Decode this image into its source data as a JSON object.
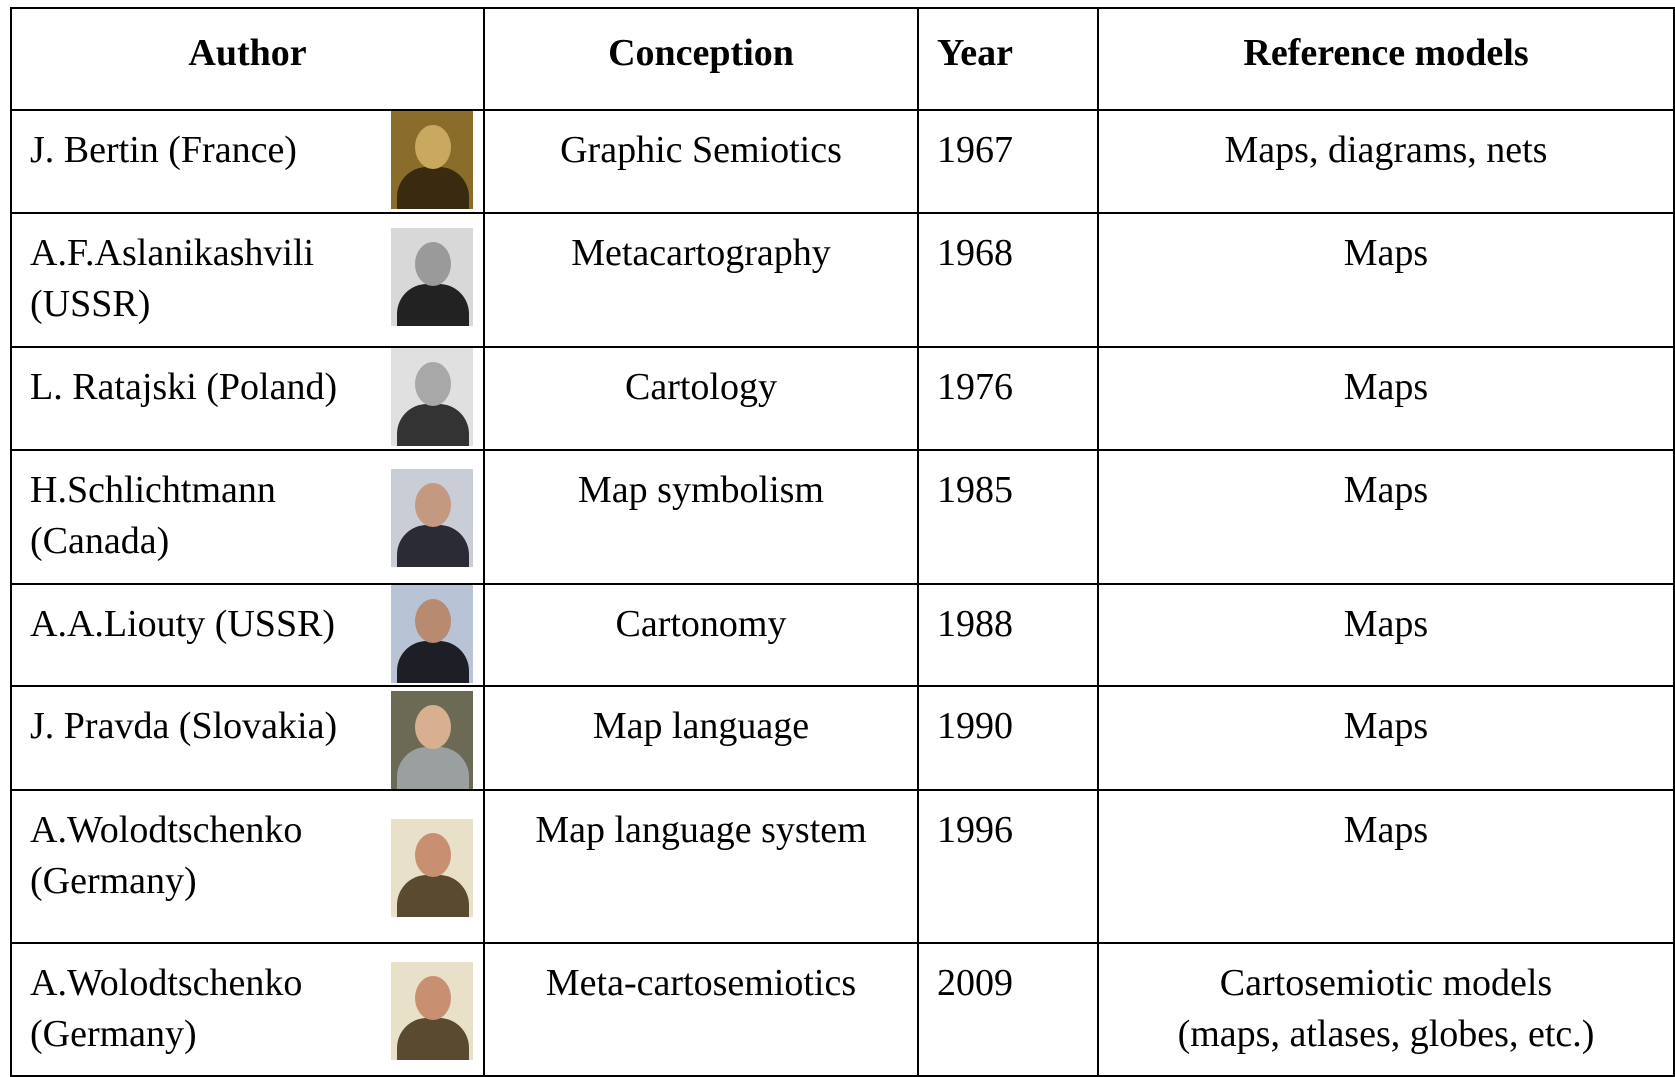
{
  "table": {
    "header": [
      "Author",
      "Conception",
      "Year",
      "Reference models"
    ],
    "rows": [
      {
        "author": [
          "J. Bertin (France)"
        ],
        "conception": "Graphic Semiotics",
        "year": 1967,
        "reference": [
          "Maps, diagrams, nets"
        ]
      },
      {
        "author": [
          "A.F.Aslanikashvili",
          "(USSR)"
        ],
        "conception": "Metacartography",
        "year": 1968,
        "reference": [
          "Maps"
        ]
      },
      {
        "author": [
          "L. Ratajski (Poland)"
        ],
        "conception": "Cartology",
        "year": 1976,
        "reference": [
          "Maps"
        ]
      },
      {
        "author": [
          "H.Schlichtmann",
          "(Canada)"
        ],
        "conception": "Map symbolism",
        "year": 1985,
        "reference": [
          "Maps"
        ]
      },
      {
        "author": [
          "A.A.Liouty (USSR)"
        ],
        "conception": "Cartonomy",
        "year": 1988,
        "reference": [
          "Maps"
        ]
      },
      {
        "author": [
          "J. Pravda (Slovakia)"
        ],
        "conception": "Map language",
        "year": 1990,
        "reference": [
          "Maps"
        ]
      },
      {
        "author": [
          "A.Wolodtschenko",
          "(Germany)"
        ],
        "conception": "Map language system",
        "year": 1996,
        "reference": [
          "Maps"
        ]
      },
      {
        "author": [
          "A.Wolodtschenko",
          "(Germany)"
        ],
        "conception": "Meta-cartosemiotics",
        "year": 2009,
        "reference": [
          "Cartosemiotic models",
          "(maps, atlases, globes, etc.)"
        ]
      }
    ]
  }
}
